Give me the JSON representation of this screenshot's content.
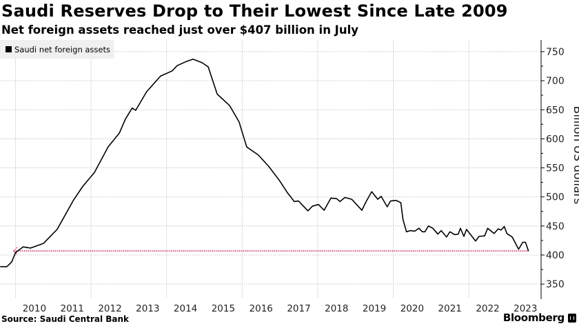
{
  "header": {
    "title": "Saudi Reserves Drop to Their Lowest Since Late 2009",
    "subtitle": "Net foreign assets reached just over $407 billion in July"
  },
  "footer": {
    "source": "Source: Saudi Central Bank",
    "brand": "Bloomberg"
  },
  "colors": {
    "line": "#000000",
    "annotation": "#c8284b",
    "grid": "#c8c8c8",
    "legend_bg": "#f0f0f0"
  },
  "chart_data": {
    "type": "line",
    "title": "Saudi Reserves Drop to Their Lowest Since Late 2009",
    "subtitle": "Net foreign assets reached just over $407 billion in July",
    "xlabel": "",
    "ylabel": "Billion US dollars",
    "legend": {
      "entries": [
        "Saudi net foreign assets"
      ],
      "placement": "top-left"
    },
    "xlim": [
      2009.59,
      2023.9
    ],
    "ylim": [
      340,
      760
    ],
    "x_ticks": [
      "2010",
      "2011",
      "2012",
      "2013",
      "2014",
      "2015",
      "2016",
      "2017",
      "2018",
      "2019",
      "2020",
      "2021",
      "2022",
      "2023"
    ],
    "y_ticks": [
      350,
      400,
      450,
      500,
      550,
      600,
      650,
      700,
      750
    ],
    "grid": true,
    "annotation": {
      "type": "hline",
      "value": 407,
      "from": 2009.95,
      "to": 2023.58
    },
    "series": [
      {
        "name": "Saudi net foreign assets",
        "x": [
          2009.6,
          2009.77,
          2009.9,
          2010.0,
          2010.2,
          2010.4,
          2010.74,
          2011.1,
          2011.23,
          2011.54,
          2011.78,
          2012.09,
          2012.45,
          2012.75,
          2012.91,
          2013.09,
          2013.18,
          2013.47,
          2013.84,
          2014.15,
          2014.28,
          2014.52,
          2014.7,
          2014.94,
          2015.1,
          2015.34,
          2015.67,
          2015.92,
          2016.12,
          2016.43,
          2016.71,
          2016.98,
          2017.2,
          2017.38,
          2017.49,
          2017.74,
          2017.86,
          2018.02,
          2018.17,
          2018.35,
          2018.5,
          2018.59,
          2018.72,
          2018.9,
          2019.17,
          2019.29,
          2019.43,
          2019.59,
          2019.68,
          2019.84,
          2019.93,
          2020.08,
          2020.2,
          2020.26,
          2020.35,
          2020.45,
          2020.57,
          2020.68,
          2020.77,
          2020.84,
          2020.93,
          2021.05,
          2021.18,
          2021.27,
          2021.41,
          2021.5,
          2021.63,
          2021.72,
          2021.78,
          2021.87,
          2021.94,
          2022.18,
          2022.27,
          2022.42,
          2022.5,
          2022.67,
          2022.78,
          2022.85,
          2022.94,
          2023.01,
          2023.15,
          2023.32,
          2023.43,
          2023.5,
          2023.58
        ],
        "values": [
          380,
          380,
          388,
          404,
          414,
          412,
          420,
          444,
          459,
          495,
          518,
          542,
          586,
          610,
          634,
          653,
          649,
          681,
          708,
          717,
          726,
          733,
          737,
          731,
          724,
          677,
          657,
          629,
          586,
          572,
          552,
          529,
          507,
          492,
          493,
          476,
          484,
          487,
          477,
          498,
          497,
          492,
          499,
          496,
          477,
          493,
          509,
          496,
          501,
          483,
          493,
          494,
          490,
          461,
          440,
          442,
          441,
          446,
          440,
          440,
          450,
          446,
          436,
          442,
          431,
          440,
          435,
          436,
          446,
          432,
          444,
          424,
          432,
          433,
          446,
          437,
          445,
          443,
          449,
          437,
          431,
          410,
          422,
          422,
          407
        ]
      }
    ]
  }
}
